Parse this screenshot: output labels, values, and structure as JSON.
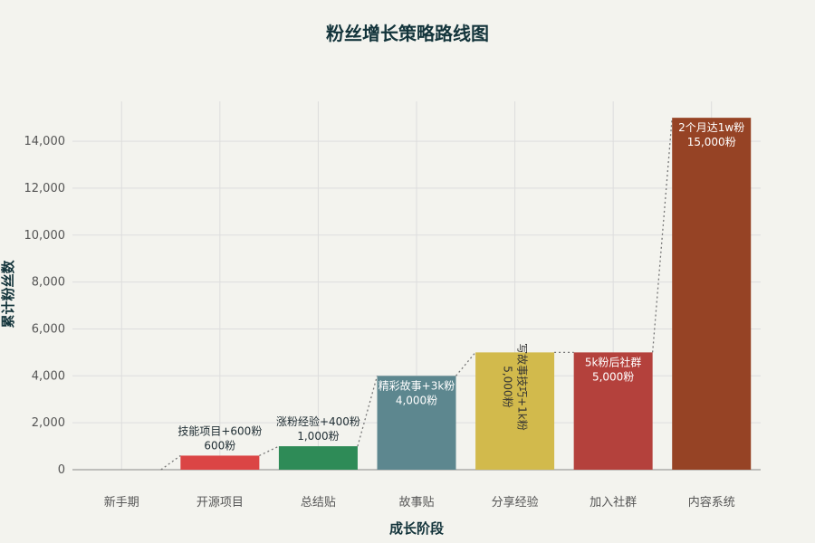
{
  "chart_data": {
    "type": "bar",
    "title": "粉丝增长策略路线图",
    "xlabel": "成长阶段",
    "ylabel": "累计粉丝数",
    "ylim": [
      0,
      15700
    ],
    "yticks": [
      0,
      2000,
      4000,
      6000,
      8000,
      10000,
      12000,
      14000
    ],
    "grid": true,
    "connector_line": "dotted",
    "categories": [
      "新手期",
      "开源项目",
      "总结贴",
      "故事贴",
      "分享经验",
      "加入社群",
      "内容系统"
    ],
    "values": [
      0,
      600,
      1000,
      4000,
      5000,
      5000,
      15000
    ],
    "colors": [
      "#1fb8cd",
      "#db4545",
      "#2e8b57",
      "#5d878f",
      "#d2ba4c",
      "#b4413c",
      "#964325"
    ],
    "labels": [
      [
        "",
        ""
      ],
      [
        "技能项目+600粉",
        "600粉"
      ],
      [
        "涨粉经验+400粉",
        "1,000粉"
      ],
      [
        "精彩故事+3k粉",
        "4,000粉"
      ],
      [
        "写故事技巧+1k粉",
        "5,000粉"
      ],
      [
        "5k粉后社群",
        "5,000粉"
      ],
      [
        "2个月达1w粉",
        "15,000粉"
      ]
    ],
    "label_positions": [
      "none",
      "outside",
      "outside",
      "inside",
      "inside-rotated",
      "inside",
      "inside"
    ]
  }
}
